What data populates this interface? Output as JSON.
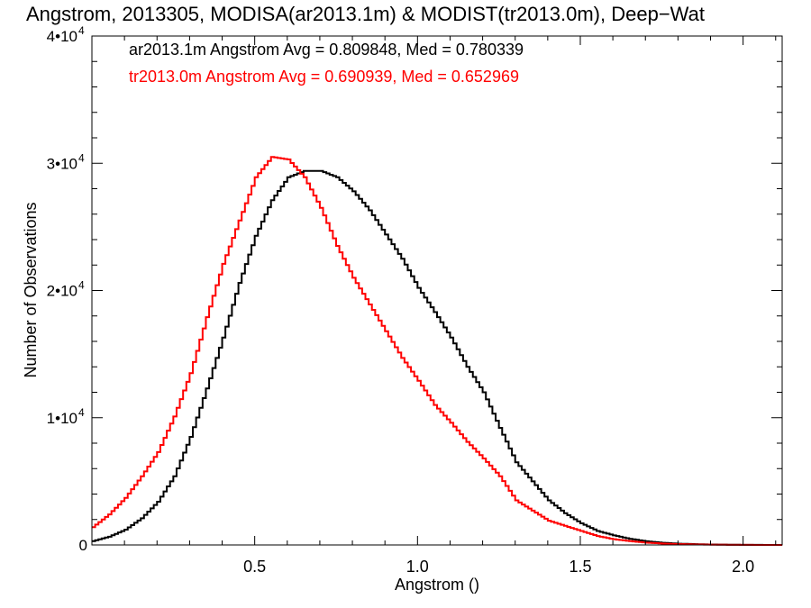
{
  "chart_data": {
    "type": "line",
    "title": "Angstrom, 2013305, MODISA(ar2013.1m) & MODIST(tr2013.0m), Deep−Wat",
    "xlabel": "Angstrom ()",
    "ylabel": "Number of Observations",
    "xlim": [
      0.0,
      2.12
    ],
    "ylim": [
      0,
      40000
    ],
    "x_ticks": [
      0.5,
      1.0,
      1.5,
      2.0
    ],
    "x_tick_labels": [
      "0.5",
      "1.0",
      "1.5",
      "2.0"
    ],
    "y_ticks": [
      0,
      10000,
      20000,
      30000,
      40000
    ],
    "y_tick_labels": [
      {
        "mant": "0",
        "exp": ""
      },
      {
        "mant": "1•10",
        "exp": "4"
      },
      {
        "mant": "2•10",
        "exp": "4"
      },
      {
        "mant": "3•10",
        "exp": "4"
      },
      {
        "mant": "4•10",
        "exp": "4"
      }
    ],
    "grid": false,
    "legend_position": "top-left",
    "series": [
      {
        "name": "ar2013.1m Angstrom Avg = 0.809848, Med = 0.780339",
        "color": "#000000",
        "x": [
          0.0,
          0.05,
          0.1,
          0.15,
          0.2,
          0.25,
          0.3,
          0.35,
          0.4,
          0.45,
          0.5,
          0.55,
          0.6,
          0.65,
          0.7,
          0.75,
          0.8,
          0.85,
          0.9,
          0.95,
          1.0,
          1.05,
          1.1,
          1.15,
          1.2,
          1.25,
          1.3,
          1.35,
          1.4,
          1.45,
          1.5,
          1.55,
          1.6,
          1.65,
          1.7,
          1.75,
          1.8,
          1.85,
          1.9,
          1.95,
          2.0,
          2.05,
          2.1
        ],
        "y": [
          300,
          650,
          1200,
          2100,
          3400,
          5400,
          8500,
          12300,
          16300,
          20600,
          24300,
          27100,
          28900,
          29400,
          29400,
          28900,
          27800,
          26300,
          24400,
          22500,
          20200,
          18300,
          16300,
          14000,
          12000,
          9200,
          6500,
          5000,
          3500,
          2500,
          1700,
          1100,
          750,
          480,
          290,
          170,
          100,
          60,
          35,
          20,
          10,
          5,
          0
        ]
      },
      {
        "name": "tr2013.0m Angstrom Avg = 0.690939, Med = 0.652969",
        "color": "#ff0000",
        "x": [
          0.0,
          0.05,
          0.1,
          0.15,
          0.2,
          0.25,
          0.3,
          0.35,
          0.4,
          0.45,
          0.5,
          0.55,
          0.6,
          0.65,
          0.7,
          0.75,
          0.8,
          0.85,
          0.9,
          0.95,
          1.0,
          1.05,
          1.1,
          1.15,
          1.2,
          1.25,
          1.3,
          1.35,
          1.4,
          1.45,
          1.5,
          1.55,
          1.6,
          1.65,
          1.7,
          1.75,
          1.8,
          1.85,
          1.9,
          1.95,
          2.0,
          2.05,
          2.1
        ],
        "y": [
          1400,
          2400,
          3700,
          5400,
          7300,
          10100,
          13500,
          17900,
          22100,
          25500,
          28900,
          30500,
          30300,
          28900,
          26500,
          23500,
          21000,
          18900,
          16800,
          14700,
          12900,
          11000,
          9600,
          8100,
          6800,
          5400,
          3500,
          2700,
          1900,
          1500,
          1100,
          700,
          450,
          300,
          180,
          110,
          65,
          40,
          22,
          12,
          6,
          3,
          0
        ]
      }
    ]
  }
}
